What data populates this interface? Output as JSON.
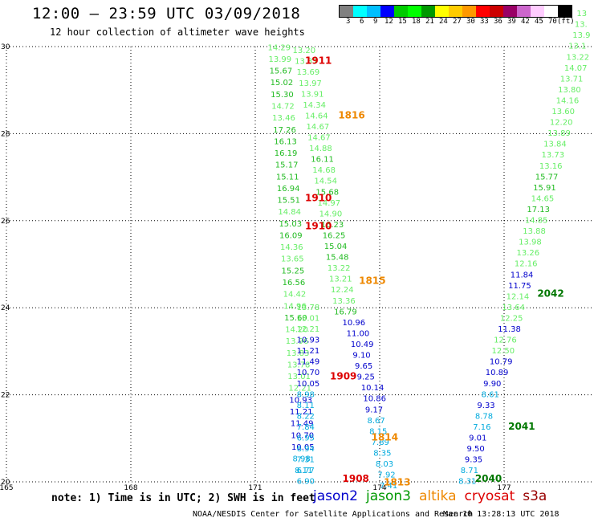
{
  "header": {
    "title": "12:00 – 23:59 UTC 03/09/2018",
    "subtitle": "12 hour collection of altimeter wave heights"
  },
  "colorbar": {
    "colors": [
      "#808080",
      "#00ffff",
      "#00bfff",
      "#0000ff",
      "#00cc00",
      "#00ff00",
      "#009900",
      "#ffff00",
      "#ffcc00",
      "#ff9900",
      "#ff0000",
      "#cc0000",
      "#990066",
      "#cc66cc",
      "#ffccff",
      "#ffffff",
      "#000000"
    ],
    "labels": [
      "3",
      "6",
      "9",
      "12",
      "15",
      "18",
      "21",
      "24",
      "27",
      "30",
      "33",
      "36",
      "39",
      "42",
      "45",
      "70",
      "(ft)"
    ]
  },
  "chart_data": {
    "type": "map",
    "xlim": [
      165,
      179.5
    ],
    "ylim": [
      20,
      30
    ],
    "x_ticks": [
      "165",
      "168",
      "171",
      "174",
      "177"
    ],
    "y_ticks": [
      "20",
      "22",
      "24",
      "26",
      "28",
      "30"
    ],
    "grid": true,
    "tracks": [
      {
        "satellite": "jason3",
        "start": [
          171.3,
          30
        ],
        "end": [
          171.85,
          20
        ],
        "points": [
          {
            "lon": 171.3,
            "lat": 29.92,
            "v": "14.29",
            "c": "#66ee66"
          },
          {
            "lon": 171.32,
            "lat": 29.65,
            "v": "13.99",
            "c": "#66ee66"
          },
          {
            "lon": 171.34,
            "lat": 29.38,
            "v": "15.67",
            "c": "#22bb22"
          },
          {
            "lon": 171.36,
            "lat": 29.11,
            "v": "15.02",
            "c": "#22bb22"
          },
          {
            "lon": 171.37,
            "lat": 28.84,
            "v": "15.30",
            "c": "#22bb22"
          },
          {
            "lon": 171.39,
            "lat": 28.57,
            "v": "14.72",
            "c": "#66ee66"
          },
          {
            "lon": 171.41,
            "lat": 28.3,
            "v": "13.46",
            "c": "#66ee66"
          },
          {
            "lon": 171.43,
            "lat": 28.03,
            "v": "17.26",
            "c": "#22bb22"
          },
          {
            "lon": 171.45,
            "lat": 27.76,
            "v": "16.13",
            "c": "#22bb22"
          },
          {
            "lon": 171.46,
            "lat": 27.49,
            "v": "16.19",
            "c": "#22bb22"
          },
          {
            "lon": 171.48,
            "lat": 27.22,
            "v": "15.17",
            "c": "#22bb22"
          },
          {
            "lon": 171.5,
            "lat": 26.95,
            "v": "15.11",
            "c": "#22bb22"
          },
          {
            "lon": 171.52,
            "lat": 26.68,
            "v": "16.94",
            "c": "#22bb22"
          },
          {
            "lon": 171.53,
            "lat": 26.41,
            "v": "15.51",
            "c": "#22bb22"
          },
          {
            "lon": 171.55,
            "lat": 26.14,
            "v": "14.84",
            "c": "#66ee66"
          },
          {
            "lon": 171.57,
            "lat": 25.87,
            "v": "15.03",
            "c": "#22bb22"
          },
          {
            "lon": 171.58,
            "lat": 25.6,
            "v": "16.09",
            "c": "#22bb22"
          },
          {
            "lon": 171.6,
            "lat": 25.33,
            "v": "14.36",
            "c": "#66ee66"
          },
          {
            "lon": 171.62,
            "lat": 25.06,
            "v": "13.65",
            "c": "#66ee66"
          },
          {
            "lon": 171.63,
            "lat": 24.79,
            "v": "15.25",
            "c": "#22bb22"
          },
          {
            "lon": 171.65,
            "lat": 24.52,
            "v": "16.56",
            "c": "#22bb22"
          },
          {
            "lon": 171.67,
            "lat": 24.25,
            "v": "14.42",
            "c": "#66ee66"
          },
          {
            "lon": 171.68,
            "lat": 23.98,
            "v": "14.96",
            "c": "#66ee66"
          },
          {
            "lon": 171.7,
            "lat": 23.71,
            "v": "15.60",
            "c": "#22bb22"
          },
          {
            "lon": 171.72,
            "lat": 23.44,
            "v": "14.20",
            "c": "#66ee66"
          },
          {
            "lon": 171.73,
            "lat": 23.17,
            "v": "13.96",
            "c": "#66ee66"
          },
          {
            "lon": 171.75,
            "lat": 22.9,
            "v": "13.83",
            "c": "#66ee66"
          },
          {
            "lon": 171.77,
            "lat": 22.63,
            "v": "13.78",
            "c": "#66ee66"
          },
          {
            "lon": 171.78,
            "lat": 22.36,
            "v": "13.01",
            "c": "#66ee66"
          },
          {
            "lon": 171.8,
            "lat": 22.09,
            "v": "12.21",
            "c": "#66ee66"
          },
          {
            "lon": 171.82,
            "lat": 21.82,
            "v": "10.93",
            "c": "#0000cc"
          },
          {
            "lon": 171.83,
            "lat": 21.55,
            "v": "11.21",
            "c": "#0000cc"
          },
          {
            "lon": 171.85,
            "lat": 21.28,
            "v": "11.49",
            "c": "#0000cc"
          },
          {
            "lon": 171.86,
            "lat": 21.01,
            "v": "10.70",
            "c": "#0000cc"
          },
          {
            "lon": 171.87,
            "lat": 20.74,
            "v": "10.05",
            "c": "#0000cc"
          },
          {
            "lon": 171.9,
            "lat": 20.47,
            "v": "8.98",
            "c": "#00aadd"
          },
          {
            "lon": 171.95,
            "lat": 20.2,
            "v": "8.11",
            "c": "#00aadd"
          }
        ]
      },
      {
        "satellite": "jason3",
        "start": [
          171.9,
          29.9
        ],
        "end": [
          172.9,
          20
        ],
        "points": [
          {
            "lon": 171.9,
            "lat": 29.85,
            "v": "13.20",
            "c": "#66ee66"
          },
          {
            "lon": 171.95,
            "lat": 29.6,
            "v": "13.37",
            "c": "#66ee66"
          },
          {
            "lon": 172.0,
            "lat": 29.35,
            "v": "13.69",
            "c": "#66ee66"
          },
          {
            "lon": 172.05,
            "lat": 29.1,
            "v": "13.97",
            "c": "#66ee66"
          },
          {
            "lon": 172.1,
            "lat": 28.85,
            "v": "13.91",
            "c": "#66ee66"
          },
          {
            "lon": 172.15,
            "lat": 28.6,
            "v": "14.34",
            "c": "#66ee66"
          },
          {
            "lon": 172.2,
            "lat": 28.35,
            "v": "14.64",
            "c": "#66ee66"
          },
          {
            "lon": 172.23,
            "lat": 28.1,
            "v": "14.67",
            "c": "#66ee66"
          },
          {
            "lon": 172.26,
            "lat": 27.85,
            "v": "14.67",
            "c": "#66ee66"
          },
          {
            "lon": 172.3,
            "lat": 27.6,
            "v": "14.88",
            "c": "#66ee66"
          },
          {
            "lon": 172.34,
            "lat": 27.35,
            "v": "16.11",
            "c": "#22bb22"
          },
          {
            "lon": 172.38,
            "lat": 27.1,
            "v": "14.68",
            "c": "#66ee66"
          },
          {
            "lon": 172.42,
            "lat": 26.85,
            "v": "14.54",
            "c": "#66ee66"
          },
          {
            "lon": 172.46,
            "lat": 26.6,
            "v": "15.68",
            "c": "#22bb22"
          },
          {
            "lon": 172.5,
            "lat": 26.35,
            "v": "14.97",
            "c": "#66ee66"
          },
          {
            "lon": 172.54,
            "lat": 26.1,
            "v": "14.90",
            "c": "#66ee66"
          },
          {
            "lon": 172.58,
            "lat": 25.85,
            "v": "16.23",
            "c": "#22bb22"
          },
          {
            "lon": 172.62,
            "lat": 25.6,
            "v": "16.25",
            "c": "#22bb22"
          },
          {
            "lon": 172.66,
            "lat": 25.35,
            "v": "15.04",
            "c": "#22bb22"
          },
          {
            "lon": 172.7,
            "lat": 25.1,
            "v": "15.48",
            "c": "#22bb22"
          },
          {
            "lon": 172.74,
            "lat": 24.85,
            "v": "13.22",
            "c": "#66ee66"
          },
          {
            "lon": 172.78,
            "lat": 24.6,
            "v": "13.21",
            "c": "#66ee66"
          },
          {
            "lon": 172.82,
            "lat": 24.35,
            "v": "12.24",
            "c": "#66ee66"
          },
          {
            "lon": 172.86,
            "lat": 24.1,
            "v": "13.36",
            "c": "#66ee66"
          },
          {
            "lon": 172.9,
            "lat": 23.85,
            "v": "16.79",
            "c": "#22bb22"
          }
        ]
      }
    ],
    "points": [
      {
        "lon": 172.0,
        "lat": 19.95,
        "v": "6.90",
        "c": "#00aadd"
      },
      {
        "lon": 172.0,
        "lat": 20.2,
        "v": "6.77",
        "c": "#00aadd"
      },
      {
        "lon": 172.0,
        "lat": 20.45,
        "v": "7.31",
        "c": "#00aadd"
      },
      {
        "lon": 172.0,
        "lat": 20.7,
        "v": "6.94",
        "c": "#00aadd"
      },
      {
        "lon": 172.0,
        "lat": 20.95,
        "v": "6.95",
        "c": "#00aadd"
      },
      {
        "lon": 172.0,
        "lat": 21.2,
        "v": "7.84",
        "c": "#00aadd"
      },
      {
        "lon": 172.0,
        "lat": 21.45,
        "v": "8.22",
        "c": "#00aadd"
      },
      {
        "lon": 172.0,
        "lat": 21.7,
        "v": "8.11",
        "c": "#00aadd"
      },
      {
        "lon": 172.0,
        "lat": 21.95,
        "v": "8.98",
        "c": "#00aadd"
      },
      {
        "lon": 172.0,
        "lat": 22.2,
        "v": "10.05",
        "c": "#0000cc"
      },
      {
        "lon": 172.0,
        "lat": 22.45,
        "v": "10.70",
        "c": "#0000cc"
      },
      {
        "lon": 172.0,
        "lat": 22.7,
        "v": "11.49",
        "c": "#0000cc"
      },
      {
        "lon": 172.0,
        "lat": 22.95,
        "v": "11.21",
        "c": "#0000cc"
      },
      {
        "lon": 172.0,
        "lat": 23.2,
        "v": "10.93",
        "c": "#0000cc"
      },
      {
        "lon": 172.0,
        "lat": 23.45,
        "v": "12.21",
        "c": "#66ee66"
      },
      {
        "lon": 172.0,
        "lat": 23.7,
        "v": "13.01",
        "c": "#66ee66"
      },
      {
        "lon": 172.0,
        "lat": 23.95,
        "v": "13.78",
        "c": "#66ee66"
      }
    ],
    "labels": [
      {
        "lon": 172.2,
        "lat": 29.6,
        "text": "1911",
        "c": "#dd0000"
      },
      {
        "lon": 173.0,
        "lat": 28.35,
        "text": "1816",
        "c": "#ee8800"
      },
      {
        "lon": 172.2,
        "lat": 26.45,
        "text": "1910",
        "c": "#dd0000"
      },
      {
        "lon": 172.2,
        "lat": 25.8,
        "text": "1910",
        "c": "#dd0000"
      },
      {
        "lon": 173.5,
        "lat": 24.55,
        "text": "1815",
        "c": "#ee8800"
      },
      {
        "lon": 172.8,
        "lat": 22.35,
        "text": "1909",
        "c": "#dd0000"
      },
      {
        "lon": 173.8,
        "lat": 20.95,
        "text": "1814",
        "c": "#ee8800"
      },
      {
        "lon": 173.1,
        "lat": 20.0,
        "text": "1908",
        "c": "#dd0000"
      },
      {
        "lon": 174.1,
        "lat": 19.92,
        "text": "1813",
        "c": "#ee8800"
      },
      {
        "lon": 177.8,
        "lat": 24.25,
        "text": "2042",
        "c": "#007700"
      },
      {
        "lon": 177.1,
        "lat": 21.2,
        "text": "2041",
        "c": "#007700"
      },
      {
        "lon": 176.3,
        "lat": 20.0,
        "text": "2040",
        "c": "#007700"
      }
    ],
    "extra_points": [
      {
        "lon": 173.1,
        "lat": 23.6,
        "v": "10.96",
        "c": "#0000cc"
      },
      {
        "lon": 173.2,
        "lat": 23.35,
        "v": "11.00",
        "c": "#0000cc"
      },
      {
        "lon": 173.3,
        "lat": 23.1,
        "v": "10.49",
        "c": "#0000cc"
      },
      {
        "lon": 173.35,
        "lat": 22.85,
        "v": "9.10",
        "c": "#0000cc"
      },
      {
        "lon": 173.4,
        "lat": 22.6,
        "v": "9.65",
        "c": "#0000cc"
      },
      {
        "lon": 173.45,
        "lat": 22.35,
        "v": "9.25",
        "c": "#0000cc"
      },
      {
        "lon": 173.55,
        "lat": 22.1,
        "v": "10.14",
        "c": "#0000cc"
      },
      {
        "lon": 173.6,
        "lat": 21.85,
        "v": "10.86",
        "c": "#0000cc"
      },
      {
        "lon": 173.65,
        "lat": 21.6,
        "v": "9.17",
        "c": "#0000cc"
      },
      {
        "lon": 173.7,
        "lat": 21.35,
        "v": "8.67",
        "c": "#00aadd"
      },
      {
        "lon": 173.75,
        "lat": 21.1,
        "v": "8.15",
        "c": "#00aadd"
      },
      {
        "lon": 173.8,
        "lat": 20.85,
        "v": "7.89",
        "c": "#00aadd"
      },
      {
        "lon": 173.85,
        "lat": 20.6,
        "v": "8.35",
        "c": "#00aadd"
      },
      {
        "lon": 173.9,
        "lat": 20.35,
        "v": "8.03",
        "c": "#00aadd"
      },
      {
        "lon": 173.95,
        "lat": 20.1,
        "v": "7.92",
        "c": "#00aadd"
      },
      {
        "lon": 174.0,
        "lat": 19.85,
        "v": "7.41",
        "c": "#00aadd"
      },
      {
        "lon": 175.9,
        "lat": 19.95,
        "v": "8.31",
        "c": "#00aadd"
      },
      {
        "lon": 175.95,
        "lat": 20.2,
        "v": "8.71",
        "c": "#00aadd"
      },
      {
        "lon": 176.05,
        "lat": 20.45,
        "v": "9.35",
        "c": "#0000cc"
      },
      {
        "lon": 176.1,
        "lat": 20.7,
        "v": "9.50",
        "c": "#0000cc"
      },
      {
        "lon": 176.15,
        "lat": 20.95,
        "v": "9.01",
        "c": "#0000cc"
      },
      {
        "lon": 176.25,
        "lat": 21.2,
        "v": "7.16",
        "c": "#00aadd"
      },
      {
        "lon": 176.3,
        "lat": 21.45,
        "v": "8.78",
        "c": "#00aadd"
      },
      {
        "lon": 176.35,
        "lat": 21.7,
        "v": "9.33",
        "c": "#0000cc"
      },
      {
        "lon": 176.45,
        "lat": 21.95,
        "v": "8.61",
        "c": "#00aadd"
      },
      {
        "lon": 176.5,
        "lat": 22.2,
        "v": "9.90",
        "c": "#0000cc"
      },
      {
        "lon": 176.55,
        "lat": 22.45,
        "v": "10.89",
        "c": "#0000cc"
      },
      {
        "lon": 176.65,
        "lat": 22.7,
        "v": "10.79",
        "c": "#0000cc"
      },
      {
        "lon": 176.7,
        "lat": 22.95,
        "v": "12.50",
        "c": "#66ee66"
      },
      {
        "lon": 176.75,
        "lat": 23.2,
        "v": "12.76",
        "c": "#66ee66"
      },
      {
        "lon": 176.85,
        "lat": 23.45,
        "v": "11.38",
        "c": "#0000cc"
      },
      {
        "lon": 176.9,
        "lat": 23.7,
        "v": "12.25",
        "c": "#66ee66"
      },
      {
        "lon": 176.95,
        "lat": 23.95,
        "v": "13.64",
        "c": "#66ee66"
      },
      {
        "lon": 177.05,
        "lat": 24.2,
        "v": "12.14",
        "c": "#66ee66"
      },
      {
        "lon": 177.1,
        "lat": 24.45,
        "v": "11.75",
        "c": "#0000cc"
      },
      {
        "lon": 177.15,
        "lat": 24.7,
        "v": "11.84",
        "c": "#0000cc"
      },
      {
        "lon": 177.25,
        "lat": 24.95,
        "v": "12.16",
        "c": "#66ee66"
      },
      {
        "lon": 177.3,
        "lat": 25.2,
        "v": "13.26",
        "c": "#66ee66"
      },
      {
        "lon": 177.35,
        "lat": 25.45,
        "v": "13.98",
        "c": "#66ee66"
      },
      {
        "lon": 177.45,
        "lat": 25.7,
        "v": "13.88",
        "c": "#66ee66"
      },
      {
        "lon": 177.5,
        "lat": 25.95,
        "v": "14.85",
        "c": "#66ee66"
      },
      {
        "lon": 177.55,
        "lat": 26.2,
        "v": "17.13",
        "c": "#22bb22"
      },
      {
        "lon": 177.65,
        "lat": 26.45,
        "v": "14.65",
        "c": "#66ee66"
      },
      {
        "lon": 177.7,
        "lat": 26.7,
        "v": "15.91",
        "c": "#22bb22"
      },
      {
        "lon": 177.75,
        "lat": 26.95,
        "v": "15.77",
        "c": "#22bb22"
      },
      {
        "lon": 177.85,
        "lat": 27.2,
        "v": "13.16",
        "c": "#66ee66"
      },
      {
        "lon": 177.9,
        "lat": 27.45,
        "v": "13.73",
        "c": "#66ee66"
      },
      {
        "lon": 177.95,
        "lat": 27.7,
        "v": "13.84",
        "c": "#66ee66"
      },
      {
        "lon": 178.05,
        "lat": 27.95,
        "v": "13.89",
        "c": "#66ee66"
      },
      {
        "lon": 178.1,
        "lat": 28.2,
        "v": "12.20",
        "c": "#66ee66"
      },
      {
        "lon": 178.15,
        "lat": 28.45,
        "v": "13.60",
        "c": "#66ee66"
      },
      {
        "lon": 178.25,
        "lat": 28.7,
        "v": "14.16",
        "c": "#66ee66"
      },
      {
        "lon": 178.3,
        "lat": 28.95,
        "v": "13.80",
        "c": "#66ee66"
      },
      {
        "lon": 178.35,
        "lat": 29.2,
        "v": "13.71",
        "c": "#66ee66"
      },
      {
        "lon": 178.45,
        "lat": 29.45,
        "v": "14.07",
        "c": "#66ee66"
      },
      {
        "lon": 178.5,
        "lat": 29.7,
        "v": "13.22",
        "c": "#66ee66"
      },
      {
        "lon": 178.55,
        "lat": 29.95,
        "v": "13.1",
        "c": "#66ee66"
      },
      {
        "lon": 178.65,
        "lat": 30.2,
        "v": "13.9",
        "c": "#66ee66"
      },
      {
        "lon": 178.7,
        "lat": 30.45,
        "v": "13.",
        "c": "#66ee66"
      },
      {
        "lon": 178.75,
        "lat": 30.7,
        "v": "13",
        "c": "#66ee66"
      }
    ]
  },
  "note": "note: 1) Time is in UTC; 2) SWH is in feet",
  "legend": [
    {
      "name": "jason2",
      "color": "#0000cc"
    },
    {
      "name": "jason3",
      "color": "#009900"
    },
    {
      "name": "altika",
      "color": "#ee8800"
    },
    {
      "name": "cryosat",
      "color": "#dd0000"
    },
    {
      "name": "s3a",
      "color": "#990000"
    }
  ],
  "footer": {
    "credit": "NOAA/NESDIS Center for Satellite Applications and Research",
    "timestamp": "Mar 10 13:28:13 UTC 2018"
  }
}
